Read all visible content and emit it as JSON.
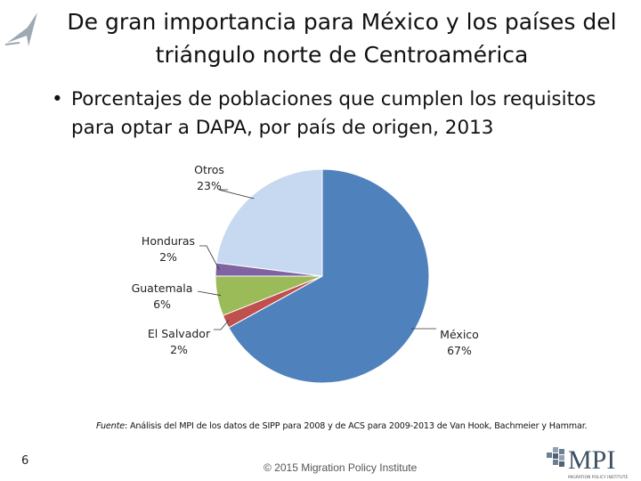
{
  "slide": {
    "title": "De gran importancia para México y los países del triángulo norte de Centroamérica",
    "bullet": "Porcentajes de poblaciones que cumplen los requisitos para optar a DAPA, por país de origen, 2013",
    "footnote_label": "Fuente",
    "footnote_text": ": Análisis del MPI de los datos de SIPP para 2008 y de ACS para 2009-2013 de Van Hook, Bachmeier y Hammar.",
    "page_number": "6",
    "copyright": "© 2015 Migration Policy Institute",
    "logo_text": "MPI",
    "logo_subtext": "MIGRATION POLICY INSTITUTE"
  },
  "chart_data": {
    "type": "pie",
    "title": "Porcentajes de poblaciones que cumplen los requisitos para optar a DAPA, por país de origen, 2013",
    "start_angle_deg": 0,
    "direction": "clockwise",
    "slices": [
      {
        "label": "México",
        "value": 67,
        "display": "67%",
        "color": "#4F81BD"
      },
      {
        "label": "El Salvador",
        "value": 2,
        "display": "2%",
        "color": "#C0504D"
      },
      {
        "label": "Guatemala",
        "value": 6,
        "display": "6%",
        "color": "#9BBB59"
      },
      {
        "label": "Honduras",
        "value": 2,
        "display": "2%",
        "color": "#8064A2"
      },
      {
        "label": "Otros",
        "value": 23,
        "display": "23%",
        "color": "#C6D9F0"
      }
    ]
  }
}
